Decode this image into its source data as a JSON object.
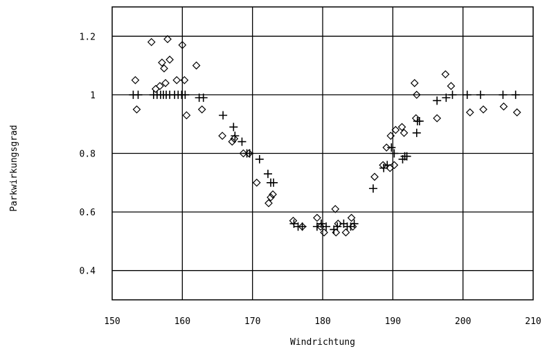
{
  "chart_data": {
    "type": "scatter",
    "title": "",
    "xlabel": "Windrichtung",
    "ylabel": "Parkwirkungsgrad",
    "xlim": [
      150,
      210
    ],
    "ylim": [
      0.3,
      1.3
    ],
    "xticks": [
      150,
      160,
      170,
      180,
      190,
      200,
      210
    ],
    "xtick_labels": [
      "150",
      "160",
      "170",
      "180",
      "190",
      "200",
      "210"
    ],
    "yticks": [
      0.4,
      0.6,
      0.8,
      1.0,
      1.2
    ],
    "ytick_labels": [
      "0.4",
      "0.6",
      "0.8",
      "1",
      "1.2"
    ],
    "grid": true,
    "series": [
      {
        "marker": "diamond",
        "color": "#000000",
        "points": [
          [
            153.3,
            1.05
          ],
          [
            153.5,
            0.95
          ],
          [
            155.6,
            1.18
          ],
          [
            156.2,
            1.02
          ],
          [
            156.8,
            1.03
          ],
          [
            157.1,
            1.11
          ],
          [
            157.4,
            1.09
          ],
          [
            157.6,
            1.04
          ],
          [
            157.9,
            1.19
          ],
          [
            158.2,
            1.12
          ],
          [
            159.2,
            1.05
          ],
          [
            160.0,
            1.17
          ],
          [
            160.3,
            1.05
          ],
          [
            160.6,
            0.93
          ],
          [
            162.0,
            1.1
          ],
          [
            162.8,
            0.95
          ],
          [
            165.7,
            0.86
          ],
          [
            167.1,
            0.84
          ],
          [
            167.4,
            0.85
          ],
          [
            168.7,
            0.8
          ],
          [
            169.5,
            0.8
          ],
          [
            170.6,
            0.7
          ],
          [
            172.3,
            0.63
          ],
          [
            172.6,
            0.65
          ],
          [
            172.9,
            0.66
          ],
          [
            175.8,
            0.57
          ],
          [
            177.1,
            0.55
          ],
          [
            179.2,
            0.58
          ],
          [
            179.7,
            0.55
          ],
          [
            180.2,
            0.53
          ],
          [
            181.8,
            0.61
          ],
          [
            181.9,
            0.53
          ],
          [
            182.2,
            0.56
          ],
          [
            183.3,
            0.53
          ],
          [
            184.1,
            0.58
          ],
          [
            184.3,
            0.55
          ],
          [
            187.4,
            0.72
          ],
          [
            188.6,
            0.76
          ],
          [
            189.1,
            0.82
          ],
          [
            189.6,
            0.75
          ],
          [
            189.7,
            0.86
          ],
          [
            190.2,
            0.76
          ],
          [
            190.4,
            0.88
          ],
          [
            191.3,
            0.89
          ],
          [
            191.6,
            0.87
          ],
          [
            193.1,
            1.04
          ],
          [
            193.3,
            0.92
          ],
          [
            193.4,
            1.0
          ],
          [
            196.3,
            0.92
          ],
          [
            197.5,
            1.07
          ],
          [
            198.3,
            1.03
          ],
          [
            201.0,
            0.94
          ],
          [
            202.9,
            0.95
          ],
          [
            205.8,
            0.96
          ],
          [
            207.7,
            0.94
          ]
        ]
      },
      {
        "marker": "plus",
        "color": "#000000",
        "points": [
          [
            153.0,
            1.0
          ],
          [
            153.7,
            1.0
          ],
          [
            155.9,
            1.0
          ],
          [
            156.4,
            1.0
          ],
          [
            156.9,
            1.0
          ],
          [
            157.3,
            1.0
          ],
          [
            157.7,
            1.0
          ],
          [
            158.2,
            1.0
          ],
          [
            158.9,
            1.0
          ],
          [
            159.4,
            1.0
          ],
          [
            159.9,
            1.0
          ],
          [
            160.4,
            1.0
          ],
          [
            162.4,
            0.99
          ],
          [
            163.0,
            0.99
          ],
          [
            165.8,
            0.93
          ],
          [
            167.3,
            0.89
          ],
          [
            167.5,
            0.86
          ],
          [
            168.5,
            0.84
          ],
          [
            169.2,
            0.8
          ],
          [
            169.6,
            0.8
          ],
          [
            171.0,
            0.78
          ],
          [
            172.2,
            0.73
          ],
          [
            172.6,
            0.7
          ],
          [
            173.0,
            0.7
          ],
          [
            175.9,
            0.56
          ],
          [
            176.5,
            0.55
          ],
          [
            177.1,
            0.55
          ],
          [
            179.2,
            0.55
          ],
          [
            179.8,
            0.56
          ],
          [
            180.5,
            0.55
          ],
          [
            181.6,
            0.54
          ],
          [
            182.1,
            0.55
          ],
          [
            183.0,
            0.56
          ],
          [
            183.5,
            0.55
          ],
          [
            184.0,
            0.55
          ],
          [
            184.5,
            0.56
          ],
          [
            187.2,
            0.68
          ],
          [
            188.7,
            0.75
          ],
          [
            189.2,
            0.76
          ],
          [
            189.8,
            0.82
          ],
          [
            190.2,
            0.8
          ],
          [
            191.4,
            0.78
          ],
          [
            191.7,
            0.79
          ],
          [
            192.0,
            0.79
          ],
          [
            193.4,
            0.87
          ],
          [
            193.5,
            0.91
          ],
          [
            193.8,
            0.91
          ],
          [
            196.3,
            0.98
          ],
          [
            197.6,
            0.99
          ],
          [
            198.5,
            1.0
          ],
          [
            200.6,
            1.0
          ],
          [
            202.5,
            1.0
          ],
          [
            205.7,
            1.0
          ],
          [
            207.5,
            1.0
          ]
        ]
      }
    ]
  }
}
